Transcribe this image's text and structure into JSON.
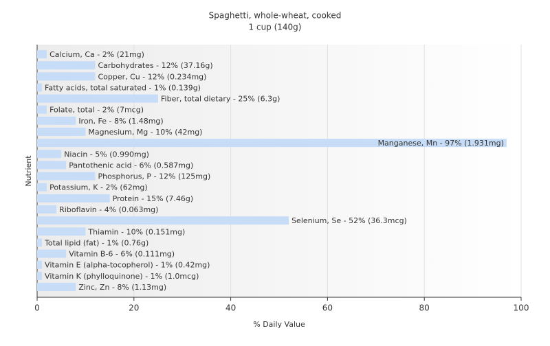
{
  "chart_data": {
    "type": "hbar",
    "title": "Spaghetti, whole-wheat, cooked",
    "subtitle": "1 cup (140g)",
    "x_label": "% Daily Value",
    "y_label": "Nutrient",
    "color": "#c7ddf7",
    "values": [
      2,
      12,
      12,
      1,
      25,
      2,
      8,
      10,
      97,
      5,
      6,
      12,
      2,
      15,
      4,
      52,
      10,
      1,
      6,
      1,
      1,
      8
    ],
    "value_labels": [
      "Calcium, Ca - 2% (21mg)",
      "Carbohydrates - 12% (37.16g)",
      "Copper, Cu - 12% (0.234mg)",
      "Fatty acids, total saturated - 1% (0.139g)",
      "Fiber, total dietary - 25% (6.3g)",
      "Folate, total - 2% (7mcg)",
      "Iron, Fe - 8% (1.48mg)",
      "Magnesium, Mg - 10% (42mg)",
      "Manganese, Mn - 97% (1.931mg)",
      "Niacin - 5% (0.990mg)",
      "Pantothenic acid - 6% (0.587mg)",
      "Phosphorus, P - 12% (125mg)",
      "Potassium, K - 2% (62mg)",
      "Protein - 15% (7.46g)",
      "Riboflavin - 4% (0.063mg)",
      "Selenium, Se - 52% (36.3mcg)",
      "Thiamin - 10% (0.151mg)",
      "Total lipid (fat) - 1% (0.76g)",
      "Vitamin B-6 - 6% (0.111mg)",
      "Vitamin E (alpha-tocopherol) - 1% (0.42mg)",
      "Vitamin K (phylloquinone) - 1% (1.0mcg)",
      "Zinc, Zn - 8% (1.13mg)"
    ],
    "xlim": [
      0,
      100
    ],
    "xticks": [
      0,
      20,
      40,
      60,
      80,
      100
    ],
    "grid": true
  }
}
